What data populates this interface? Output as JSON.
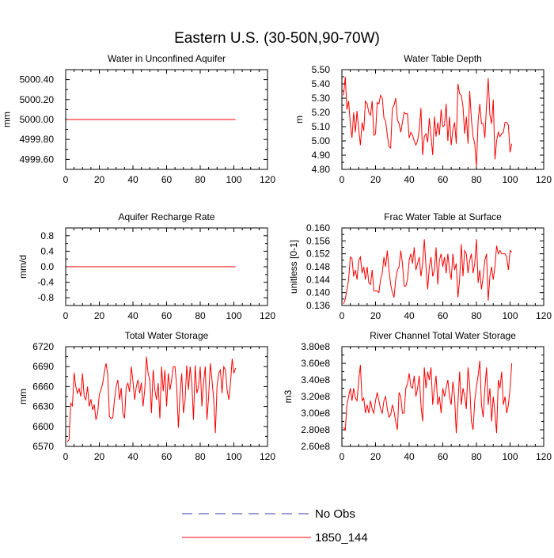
{
  "title": "Eastern U.S. (30-50N,90-70W)",
  "colors": {
    "model": "#ff0000",
    "obs": "#3a3aa8",
    "axis": "#000000"
  },
  "legend": {
    "entries": [
      {
        "label": "No Obs",
        "style": "dashed",
        "color": "#3a3aa8"
      },
      {
        "label": "1850_144",
        "style": "solid",
        "color": "#ff0000"
      }
    ]
  },
  "chart_data": [
    {
      "type": "line",
      "title": "Water in Unconfined Aquifer",
      "ylabel": "mm",
      "xlabel": "",
      "xlim": [
        0,
        120
      ],
      "ylim": [
        4999.5,
        5000.5
      ],
      "xticks": [
        0,
        20,
        40,
        60,
        80,
        100,
        120
      ],
      "yticks": [
        4999.6,
        4999.8,
        5000.0,
        5000.2,
        5000.4
      ],
      "ytick_labels": [
        "4999.60",
        "4999.80",
        "5000.00",
        "5000.20",
        "5000.40"
      ],
      "series": [
        {
          "name": "1850_144",
          "x_start": 1,
          "values": [
            5000,
            5000,
            5000,
            5000,
            5000,
            5000,
            5000,
            5000,
            5000,
            5000,
            5000,
            5000,
            5000,
            5000,
            5000,
            5000,
            5000,
            5000,
            5000,
            5000,
            5000,
            5000,
            5000,
            5000,
            5000,
            5000,
            5000,
            5000,
            5000,
            5000,
            5000,
            5000,
            5000,
            5000,
            5000,
            5000,
            5000,
            5000,
            5000,
            5000,
            5000,
            5000,
            5000,
            5000,
            5000,
            5000,
            5000,
            5000,
            5000,
            5000,
            5000,
            5000,
            5000,
            5000,
            5000,
            5000,
            5000,
            5000,
            5000,
            5000,
            5000,
            5000,
            5000,
            5000,
            5000,
            5000,
            5000,
            5000,
            5000,
            5000,
            5000,
            5000,
            5000,
            5000,
            5000,
            5000,
            5000,
            5000,
            5000,
            5000,
            5000,
            5000,
            5000,
            5000,
            5000,
            5000,
            5000,
            5000,
            5000,
            5000,
            5000,
            5000,
            5000,
            5000,
            5000,
            5000,
            5000,
            5000,
            5000,
            5000,
            5000
          ]
        }
      ]
    },
    {
      "type": "line",
      "title": "Water Table Depth",
      "ylabel": "m",
      "xlabel": "",
      "xlim": [
        0,
        120
      ],
      "ylim": [
        4.8,
        5.5
      ],
      "xticks": [
        0,
        20,
        40,
        60,
        80,
        100,
        120
      ],
      "yticks": [
        4.8,
        4.9,
        5.0,
        5.1,
        5.2,
        5.3,
        5.4,
        5.5
      ],
      "ytick_labels": [
        "4.80",
        "4.90",
        "5.00",
        "5.10",
        "5.20",
        "5.30",
        "5.40",
        "5.50"
      ],
      "series": [
        {
          "name": "1850_144",
          "x_start": 1,
          "values": [
            5.32,
            5.45,
            5.22,
            5.28,
            5.12,
            5.02,
            5.2,
            5.06,
            5.21,
            5.08,
            4.97,
            5.13,
            5.07,
            5.28,
            5.26,
            5.2,
            5.18,
            5.28,
            5.04,
            5.05,
            5.27,
            5.26,
            5.32,
            5.3,
            5.16,
            5.14,
            5.04,
            4.96,
            4.95,
            5.23,
            5.25,
            5.3,
            5.15,
            5.12,
            5.06,
            5.13,
            5.2,
            5.19,
            5.19,
            5.02,
            5.06,
            5.04,
            5.0,
            4.97,
            5.0,
            5.08,
            5.23,
            4.9,
            5.03,
            5.05,
            4.99,
            5.16,
            5.03,
            4.9,
            5.17,
            5.03,
            5.13,
            5.04,
            5.22,
            5.1,
            5.11,
            5.26,
            5.0,
            5.17,
            4.97,
            5.08,
            5.13,
            4.98,
            5.4,
            5.33,
            5.32,
            5.24,
            5.05,
            5.17,
            4.98,
            5.35,
            5.15,
            5.03,
            4.98,
            4.82,
            5.14,
            5.26,
            5.12,
            5.12,
            5.02,
            5.25,
            5.44,
            5.18,
            5.12,
            5.29,
            4.87,
            5.0,
            5.06,
            5.03,
            5.05,
            5.06,
            5.13,
            5.13,
            5.11,
            4.92,
            4.98
          ]
        }
      ]
    },
    {
      "type": "line",
      "title": "Aquifer Recharge Rate",
      "ylabel": "mm/d",
      "xlabel": "",
      "xlim": [
        0,
        120
      ],
      "ylim": [
        -1,
        1
      ],
      "xticks": [
        0,
        20,
        40,
        60,
        80,
        100,
        120
      ],
      "yticks": [
        -0.8,
        -0.4,
        0.0,
        0.4,
        0.8
      ],
      "ytick_labels": [
        "-0.8",
        "-0.4",
        "0.0",
        "0.4",
        "0.8"
      ],
      "series": [
        {
          "name": "1850_144",
          "x_start": 1,
          "values": [
            0,
            0,
            0,
            0,
            0,
            0,
            0,
            0,
            0,
            0,
            0,
            0,
            0,
            0,
            0,
            0,
            0,
            0,
            0,
            0,
            0,
            0,
            0,
            0,
            0,
            0,
            0,
            0,
            0,
            0,
            0,
            0,
            0,
            0,
            0,
            0,
            0,
            0,
            0,
            0,
            0,
            0,
            0,
            0,
            0,
            0,
            0,
            0,
            0,
            0,
            0,
            0,
            0,
            0,
            0,
            0,
            0,
            0,
            0,
            0,
            0,
            0,
            0,
            0,
            0,
            0,
            0,
            0,
            0,
            0,
            0,
            0,
            0,
            0,
            0,
            0,
            0,
            0,
            0,
            0,
            0,
            0,
            0,
            0,
            0,
            0,
            0,
            0,
            0,
            0,
            0,
            0,
            0,
            0,
            0,
            0,
            0,
            0,
            0,
            0,
            0
          ]
        }
      ]
    },
    {
      "type": "line",
      "title": "Frac Water Table at Surface",
      "ylabel": "unitless [0-1]",
      "xlabel": "",
      "xlim": [
        0,
        120
      ],
      "ylim": [
        0.136,
        0.16
      ],
      "xticks": [
        0,
        20,
        40,
        60,
        80,
        100,
        120
      ],
      "yticks": [
        0.136,
        0.14,
        0.144,
        0.148,
        0.152,
        0.156,
        0.16
      ],
      "ytick_labels": [
        "0.136",
        "0.140",
        "0.144",
        "0.148",
        "0.152",
        "0.156",
        "0.160"
      ],
      "series": [
        {
          "name": "1850_144",
          "x_start": 1,
          "values": [
            0.1365,
            0.138,
            0.141,
            0.144,
            0.151,
            0.1505,
            0.145,
            0.147,
            0.144,
            0.15,
            0.151,
            0.146,
            0.148,
            0.144,
            0.148,
            0.143,
            0.1425,
            0.147,
            0.1405,
            0.1405,
            0.1405,
            0.14,
            0.144,
            0.146,
            0.151,
            0.148,
            0.153,
            0.147,
            0.1425,
            0.14,
            0.1385,
            0.144,
            0.147,
            0.148,
            0.153,
            0.149,
            0.142,
            0.142,
            0.144,
            0.15,
            0.152,
            0.149,
            0.154,
            0.147,
            0.149,
            0.151,
            0.145,
            0.149,
            0.1565,
            0.148,
            0.141,
            0.148,
            0.151,
            0.145,
            0.147,
            0.154,
            0.1425,
            0.15,
            0.152,
            0.148,
            0.151,
            0.146,
            0.152,
            0.147,
            0.144,
            0.152,
            0.147,
            0.149,
            0.1385,
            0.144,
            0.155,
            0.145,
            0.153,
            0.152,
            0.146,
            0.15,
            0.152,
            0.146,
            0.149,
            0.1565,
            0.143,
            0.147,
            0.141,
            0.145,
            0.15,
            0.152,
            0.1375,
            0.145,
            0.148,
            0.144,
            0.148,
            0.1545,
            0.152,
            0.153,
            0.152,
            0.152,
            0.152,
            0.151,
            0.147,
            0.153,
            0.1525
          ]
        }
      ]
    },
    {
      "type": "line",
      "title": "Total Water Storage",
      "ylabel": "mm",
      "xlabel": "",
      "xlim": [
        0,
        120
      ],
      "ylim": [
        6570,
        6720
      ],
      "xticks": [
        0,
        20,
        40,
        60,
        80,
        100,
        120
      ],
      "yticks": [
        6570,
        6600,
        6630,
        6660,
        6690,
        6720
      ],
      "ytick_labels": [
        "6570",
        "6600",
        "6630",
        "6660",
        "6690",
        "6720"
      ],
      "series": [
        {
          "name": "1850_144",
          "x_start": 1,
          "values": [
            6577,
            6580,
            6635,
            6631,
            6681,
            6660,
            6650,
            6657,
            6645,
            6680,
            6645,
            6640,
            6660,
            6630,
            6641,
            6625,
            6633,
            6610,
            6620,
            6648,
            6655,
            6665,
            6682,
            6695,
            6678,
            6615,
            6612,
            6613,
            6640,
            6660,
            6670,
            6640,
            6658,
            6620,
            6612,
            6660,
            6665,
            6652,
            6690,
            6668,
            6640,
            6660,
            6670,
            6650,
            6666,
            6630,
            6655,
            6705,
            6680,
            6670,
            6620,
            6685,
            6655,
            6640,
            6665,
            6612,
            6690,
            6653,
            6685,
            6630,
            6680,
            6655,
            6670,
            6690,
            6690,
            6660,
            6598,
            6650,
            6680,
            6620,
            6640,
            6692,
            6655,
            6690,
            6665,
            6610,
            6692,
            6650,
            6660,
            6690,
            6630,
            6667,
            6690,
            6610,
            6645,
            6695,
            6670,
            6640,
            6590,
            6660,
            6680,
            6685,
            6650,
            6690,
            6685,
            6655,
            6640,
            6665,
            6702,
            6680,
            6688
          ]
        }
      ]
    },
    {
      "type": "line",
      "title": "River Channel Total Water Storage",
      "ylabel": "m3",
      "xlabel": "",
      "xlim": [
        0,
        120
      ],
      "ylim": [
        260000000,
        380000000
      ],
      "xticks": [
        0,
        20,
        40,
        60,
        80,
        100,
        120
      ],
      "yticks": [
        260000000,
        280000000,
        300000000,
        320000000,
        340000000,
        360000000,
        380000000
      ],
      "ytick_labels": [
        "2.60e8",
        "2.80e8",
        "3.00e8",
        "3.20e8",
        "3.40e8",
        "3.60e8",
        "3.80e8"
      ],
      "series": [
        {
          "name": "1850_144",
          "x_start": 1,
          "values": [
            283000000,
            280000000,
            310000000,
            320000000,
            330000000,
            315000000,
            330000000,
            318000000,
            315000000,
            340000000,
            358000000,
            315000000,
            318000000,
            300000000,
            310000000,
            300000000,
            315000000,
            305000000,
            300000000,
            315000000,
            325000000,
            315000000,
            305000000,
            300000000,
            315000000,
            320000000,
            305000000,
            295000000,
            298000000,
            310000000,
            302000000,
            290000000,
            280000000,
            325000000,
            320000000,
            300000000,
            300000000,
            330000000,
            335000000,
            348000000,
            332000000,
            330000000,
            345000000,
            320000000,
            330000000,
            345000000,
            310000000,
            290000000,
            355000000,
            330000000,
            350000000,
            340000000,
            355000000,
            310000000,
            330000000,
            345000000,
            310000000,
            320000000,
            300000000,
            330000000,
            320000000,
            330000000,
            340000000,
            320000000,
            310000000,
            338000000,
            320000000,
            276000000,
            312000000,
            350000000,
            310000000,
            330000000,
            320000000,
            305000000,
            355000000,
            333000000,
            290000000,
            280000000,
            315000000,
            332000000,
            345000000,
            363000000,
            310000000,
            295000000,
            330000000,
            355000000,
            310000000,
            330000000,
            290000000,
            320000000,
            300000000,
            276000000,
            340000000,
            330000000,
            350000000,
            310000000,
            320000000,
            300000000,
            310000000,
            330000000,
            360000000
          ]
        }
      ]
    }
  ]
}
